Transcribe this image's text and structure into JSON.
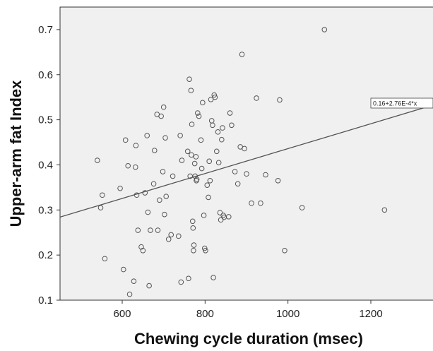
{
  "chart_data": {
    "type": "scatter",
    "xlabel": "Chewing cycle duration (msec)",
    "ylabel": "Upper-arm fat Index",
    "xlim": [
      450,
      1350
    ],
    "ylim": [
      0.1,
      0.75
    ],
    "x_ticks": [
      600,
      800,
      1000,
      1200
    ],
    "x_tick_labels": [
      "600",
      "800",
      "1000",
      "1200"
    ],
    "y_ticks": [
      0.1,
      0.2,
      0.3,
      0.4,
      0.5,
      0.6,
      0.7
    ],
    "y_tick_labels": [
      "0.1",
      "0.2",
      "0.3",
      "0.4",
      "0.5",
      "0.6",
      "0.7"
    ],
    "grid": false,
    "fit_line": {
      "intercept": 0.16,
      "slope": 0.000276,
      "label": "0.16+2.76E-4*x"
    },
    "colors": {
      "background": "#f0f0f0",
      "point_stroke": "#555555",
      "line": "#555555"
    },
    "points": [
      [
        540,
        0.41
      ],
      [
        548,
        0.305
      ],
      [
        552,
        0.333
      ],
      [
        558,
        0.192
      ],
      [
        595,
        0.348
      ],
      [
        603,
        0.168
      ],
      [
        608,
        0.455
      ],
      [
        614,
        0.398
      ],
      [
        618,
        0.113
      ],
      [
        628,
        0.142
      ],
      [
        632,
        0.395
      ],
      [
        633,
        0.443
      ],
      [
        635,
        0.333
      ],
      [
        638,
        0.255
      ],
      [
        646,
        0.218
      ],
      [
        650,
        0.21
      ],
      [
        655,
        0.338
      ],
      [
        660,
        0.465
      ],
      [
        662,
        0.295
      ],
      [
        665,
        0.132
      ],
      [
        668,
        0.255
      ],
      [
        676,
        0.358
      ],
      [
        678,
        0.432
      ],
      [
        684,
        0.512
      ],
      [
        686,
        0.255
      ],
      [
        690,
        0.322
      ],
      [
        694,
        0.508
      ],
      [
        698,
        0.385
      ],
      [
        700,
        0.528
      ],
      [
        702,
        0.29
      ],
      [
        704,
        0.46
      ],
      [
        706,
        0.33
      ],
      [
        712,
        0.235
      ],
      [
        718,
        0.245
      ],
      [
        722,
        0.375
      ],
      [
        736,
        0.242
      ],
      [
        740,
        0.465
      ],
      [
        742,
        0.14
      ],
      [
        744,
        0.41
      ],
      [
        758,
        0.43
      ],
      [
        760,
        0.148
      ],
      [
        762,
        0.59
      ],
      [
        764,
        0.375
      ],
      [
        766,
        0.565
      ],
      [
        767,
        0.422
      ],
      [
        768,
        0.49
      ],
      [
        770,
        0.275
      ],
      [
        771,
        0.26
      ],
      [
        772,
        0.21
      ],
      [
        773,
        0.222
      ],
      [
        775,
        0.403
      ],
      [
        776,
        0.375
      ],
      [
        778,
        0.418
      ],
      [
        779,
        0.365
      ],
      [
        780,
        0.368
      ],
      [
        782,
        0.515
      ],
      [
        785,
        0.508
      ],
      [
        790,
        0.455
      ],
      [
        792,
        0.392
      ],
      [
        794,
        0.538
      ],
      [
        797,
        0.288
      ],
      [
        799,
        0.215
      ],
      [
        801,
        0.21
      ],
      [
        805,
        0.355
      ],
      [
        808,
        0.328
      ],
      [
        810,
        0.408
      ],
      [
        812,
        0.365
      ],
      [
        814,
        0.545
      ],
      [
        816,
        0.498
      ],
      [
        818,
        0.488
      ],
      [
        820,
        0.15
      ],
      [
        822,
        0.555
      ],
      [
        824,
        0.55
      ],
      [
        828,
        0.43
      ],
      [
        831,
        0.473
      ],
      [
        833,
        0.405
      ],
      [
        836,
        0.294
      ],
      [
        838,
        0.278
      ],
      [
        840,
        0.456
      ],
      [
        842,
        0.482
      ],
      [
        844,
        0.288
      ],
      [
        846,
        0.284
      ],
      [
        857,
        0.285
      ],
      [
        860,
        0.515
      ],
      [
        864,
        0.488
      ],
      [
        872,
        0.385
      ],
      [
        879,
        0.358
      ],
      [
        885,
        0.44
      ],
      [
        889,
        0.645
      ],
      [
        895,
        0.436
      ],
      [
        900,
        0.38
      ],
      [
        912,
        0.315
      ],
      [
        924,
        0.548
      ],
      [
        934,
        0.315
      ],
      [
        946,
        0.378
      ],
      [
        976,
        0.365
      ],
      [
        980,
        0.544
      ],
      [
        992,
        0.21
      ],
      [
        1034,
        0.305
      ],
      [
        1088,
        0.7
      ],
      [
        1233,
        0.3
      ]
    ]
  }
}
